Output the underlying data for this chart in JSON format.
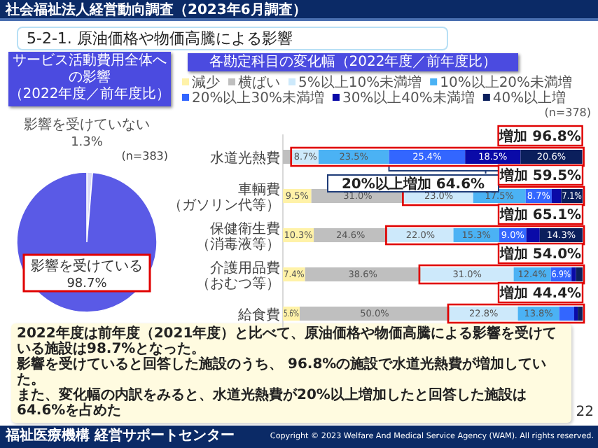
{
  "chart_data": [
    {
      "type": "other",
      "title": "社会福祉法人経営動向調査（2023年6月調査）",
      "subtitle": "5-2-1.  原油価格や物価高騰による影響",
      "annotations": [
        "2022年度は前年度（2021年度）と比べて、原油価格や物価高騰による影響を受けている施設は98.7%となった。",
        "影響を受けていると回答した施設のうち、 96.8%の施設で水道光熱費が増加していた。",
        "また、変化幅の内訳をみると、水道光熱費が20%以上増加したと回答した施設は64.6%を占めた",
        "22",
        "福祉医療機構 経営サポートセンター",
        "Copyright © 2023 Welfare And Medical Service Agency (WAM). All rights reserved."
      ]
    },
    {
      "type": "pie",
      "title": "サービス活動費用全体への影響",
      "subtitle": "（2022年度／前年度比）",
      "categories": [
        "影響を受けていない",
        "影響を受けている"
      ],
      "values": [
        1.3,
        98.7
      ],
      "colors": [
        "#d9d9f7",
        "#5a5ae6"
      ],
      "value_labels": [
        "1.3%",
        "98.7%"
      ],
      "annotations": [
        "(n=383)"
      ]
    },
    {
      "type": "bar",
      "orientation": "horizontal",
      "stacked": true,
      "title": "各勘定科目の変化幅（2022年度／前年度比）",
      "legend": "top",
      "categories": [
        "水道光熱費",
        "車輌費（ガソリン代等）",
        "保健衛生費（消毒液等）",
        "介護用品費（おむつ等）",
        "給食費"
      ],
      "series": [
        {
          "name": "減少",
          "color": "#fff2a8",
          "values": [
            null,
            9.5,
            10.3,
            7.4,
            5.6
          ],
          "value_labels": [
            null,
            "9.5%",
            "10.3%",
            "7.4%",
            "5.6%"
          ]
        },
        {
          "name": "横ばい",
          "color": "#bfbfbf",
          "values": [
            3.2,
            31.0,
            24.6,
            38.6,
            50.0
          ],
          "value_labels": [
            null,
            "31.0%",
            "24.6%",
            "38.6%",
            "50.0%"
          ]
        },
        {
          "name": "5%以上10%未満増",
          "color": "#cde9fb",
          "values": [
            8.7,
            23.0,
            22.0,
            31.0,
            22.8
          ],
          "value_labels": [
            "8.7%",
            "23.0%",
            "22.0%",
            "31.0%",
            "22.8%"
          ]
        },
        {
          "name": "10%以上20%未満増",
          "color": "#4bb2f4",
          "values": [
            23.5,
            17.5,
            15.3,
            12.4,
            13.8
          ],
          "value_labels": [
            "23.5%",
            "17.5%",
            "15.3%",
            "12.4%",
            "13.8%"
          ]
        },
        {
          "name": "20%以上30%未満増",
          "color": "#3366ff",
          "values": [
            25.4,
            8.7,
            9.0,
            6.9,
            5.0
          ],
          "value_labels": [
            "25.4%",
            "8.7%",
            "9.0%",
            "6.9%",
            null
          ]
        },
        {
          "name": "30%以上40%未満増",
          "color": "#0a0aa8",
          "values": [
            18.5,
            3.2,
            4.5,
            1.5,
            1.2
          ],
          "value_labels": [
            "18.5%",
            null,
            null,
            null,
            null
          ]
        },
        {
          "name": "40%以上増",
          "color": "#0b1f5c",
          "values": [
            20.6,
            7.1,
            14.3,
            2.2,
            1.6
          ],
          "value_labels": [
            "20.6%",
            "7.1%",
            "14.3%",
            null,
            null
          ]
        }
      ],
      "annotations": [
        "(n=378)",
        "20%以上増加 64.6%",
        "増加 96.8%",
        "増加 59.5%",
        "増加 65.1%",
        "増加 54.0%",
        "増加 44.4%"
      ]
    }
  ]
}
